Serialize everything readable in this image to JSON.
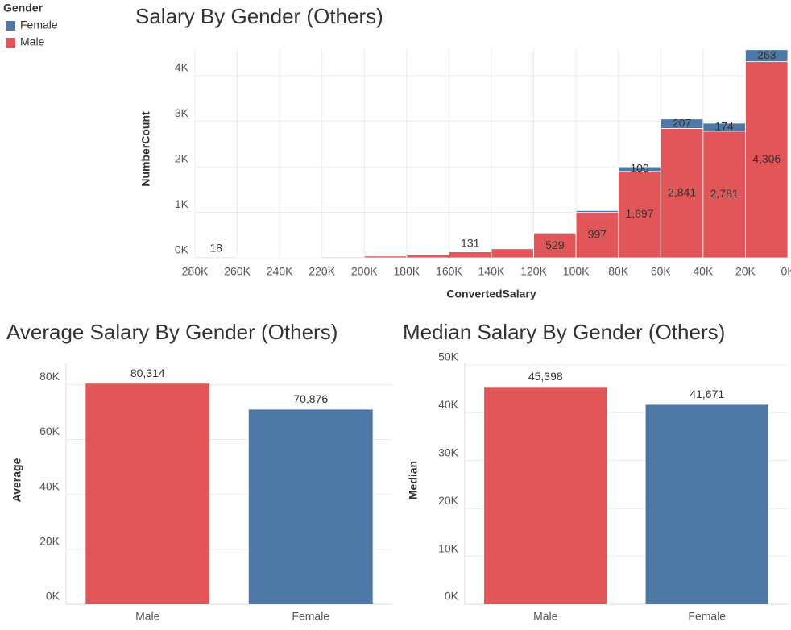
{
  "chart_data": [
    {
      "type": "histogram",
      "title": "Salary By Gender (Others)",
      "legend_title": "Gender",
      "legend": "top-left",
      "x_label": "ConvertedSalary",
      "y_label": "NumberCount",
      "bins": [
        280000,
        260000,
        240000,
        220000,
        200000,
        180000,
        160000,
        140000,
        120000,
        100000,
        80000,
        60000,
        40000,
        20000,
        0
      ],
      "series": [
        {
          "name": "Female",
          "color": "#4e79a7",
          "values": [
            1,
            1,
            1,
            2,
            4,
            5,
            10,
            15,
            20,
            40,
            100,
            207,
            174,
            263
          ],
          "value_labels": [
            null,
            null,
            null,
            null,
            null,
            null,
            null,
            null,
            null,
            null,
            "100",
            "207",
            "174",
            "263"
          ]
        },
        {
          "name": "Male",
          "color": "#e15759",
          "values": [
            18,
            8,
            10,
            20,
            40,
            60,
            131,
            200,
            529,
            997,
            1897,
            2841,
            2781,
            4306
          ],
          "value_labels": [
            "18",
            null,
            null,
            null,
            null,
            null,
            "131",
            null,
            "529",
            "997",
            "1,897",
            "2,841",
            "2,781",
            "4,306"
          ]
        }
      ],
      "xlim": [
        280000,
        0
      ],
      "xticks": [
        {
          "value": 280000,
          "label": "280K"
        },
        {
          "value": 260000,
          "label": "260K"
        },
        {
          "value": 240000,
          "label": "240K"
        },
        {
          "value": 220000,
          "label": "220K"
        },
        {
          "value": 200000,
          "label": "200K"
        },
        {
          "value": 180000,
          "label": "180K"
        },
        {
          "value": 160000,
          "label": "160K"
        },
        {
          "value": 140000,
          "label": "140K"
        },
        {
          "value": 120000,
          "label": "120K"
        },
        {
          "value": 100000,
          "label": "100K"
        },
        {
          "value": 80000,
          "label": "80K"
        },
        {
          "value": 60000,
          "label": "60K"
        },
        {
          "value": 40000,
          "label": "40K"
        },
        {
          "value": 20000,
          "label": "20K"
        },
        {
          "value": 0,
          "label": "0K"
        }
      ],
      "ylim": [
        0,
        4600
      ],
      "yticks": [
        {
          "value": 0,
          "label": "0K"
        },
        {
          "value": 1000,
          "label": "1K"
        },
        {
          "value": 2000,
          "label": "2K"
        },
        {
          "value": 3000,
          "label": "3K"
        },
        {
          "value": 4000,
          "label": "4K"
        }
      ],
      "grid": true
    },
    {
      "type": "bar",
      "title": "Average Salary By Gender (Others)",
      "y_label": "Average",
      "categories": [
        "Male",
        "Female"
      ],
      "values": [
        80314,
        70876
      ],
      "value_labels": [
        "80,314",
        "70,876"
      ],
      "colors": [
        "#e15759",
        "#4e79a7"
      ],
      "ylim": [
        0,
        88000
      ],
      "yticks": [
        {
          "value": 0,
          "label": "0K"
        },
        {
          "value": 20000,
          "label": "20K"
        },
        {
          "value": 40000,
          "label": "40K"
        },
        {
          "value": 60000,
          "label": "60K"
        },
        {
          "value": 80000,
          "label": "80K"
        }
      ],
      "grid": true
    },
    {
      "type": "bar",
      "title": "Median Salary By Gender (Others)",
      "y_label": "Median",
      "categories": [
        "Male",
        "Female"
      ],
      "values": [
        45398,
        41671
      ],
      "value_labels": [
        "45,398",
        "41,671"
      ],
      "colors": [
        "#e15759",
        "#4e79a7"
      ],
      "ylim": [
        0,
        50500
      ],
      "yticks": [
        {
          "value": 0,
          "label": "0K"
        },
        {
          "value": 10000,
          "label": "10K"
        },
        {
          "value": 20000,
          "label": "20K"
        },
        {
          "value": 30000,
          "label": "30K"
        },
        {
          "value": 40000,
          "label": "40K"
        },
        {
          "value": 50000,
          "label": "50K"
        }
      ],
      "grid": true
    }
  ]
}
